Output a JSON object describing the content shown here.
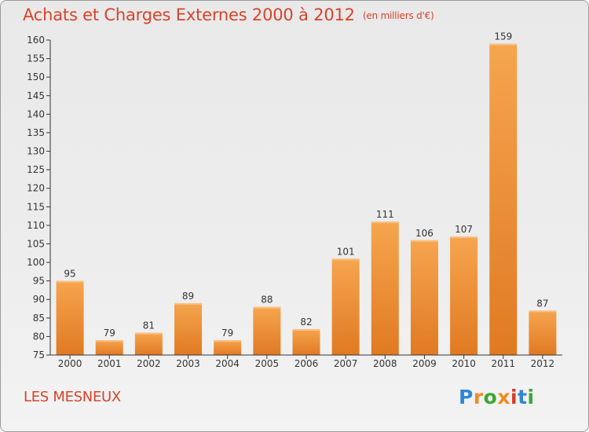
{
  "header": {
    "title": "Achats et Charges Externes 2000 à 2012",
    "unit": "(en milliers d'€)"
  },
  "footer": {
    "commune": "LES MESNEUX",
    "brand": "Proxiti",
    "brand_colors": [
      "#2f86d6",
      "#f28a1e",
      "#3aa835",
      "#f28a1e",
      "#d63a2a",
      "#2f86d6",
      "#3aa835"
    ]
  },
  "colors": {
    "title": "#d8432a",
    "bar_top": "#f6a54f",
    "bar_bottom": "#e07a22",
    "axis": "#333333"
  },
  "chart_data": {
    "type": "bar",
    "categories": [
      "2000",
      "2001",
      "2002",
      "2003",
      "2004",
      "2005",
      "2006",
      "2007",
      "2008",
      "2009",
      "2010",
      "2011",
      "2012"
    ],
    "values": [
      95,
      79,
      81,
      89,
      79,
      88,
      82,
      101,
      111,
      106,
      107,
      159,
      87
    ],
    "title": "Achats et Charges Externes 2000 à 2012",
    "ylim": [
      75,
      160
    ],
    "yticks": [
      75,
      80,
      85,
      90,
      95,
      100,
      105,
      110,
      115,
      120,
      125,
      130,
      135,
      140,
      145,
      150,
      155,
      160
    ],
    "grid": false,
    "data_labels": true
  }
}
